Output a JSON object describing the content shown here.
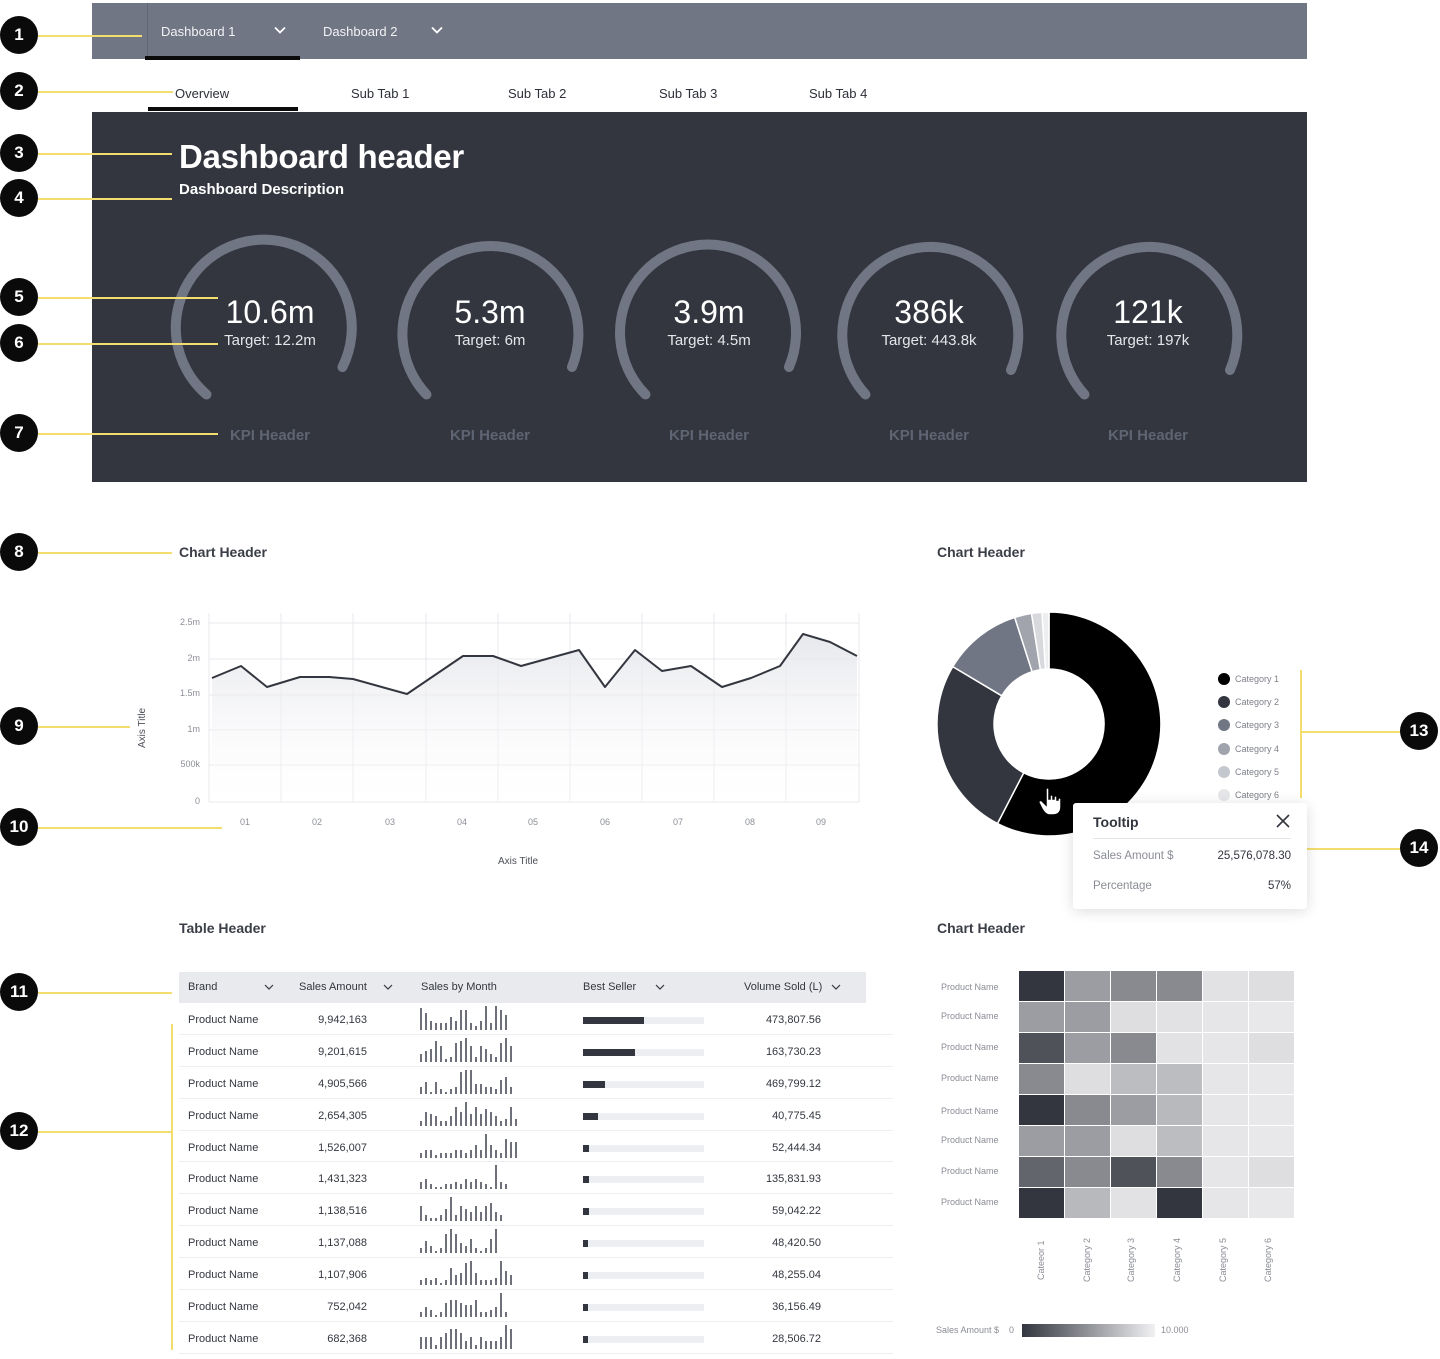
{
  "annotations": [
    "1",
    "2",
    "3",
    "4",
    "5",
    "6",
    "7",
    "8",
    "9",
    "10",
    "11",
    "12",
    "13",
    "14"
  ],
  "top_tabs": [
    {
      "label": "Dashboard 1",
      "active": true
    },
    {
      "label": "Dashboard 2",
      "active": false
    }
  ],
  "sub_tabs": [
    {
      "label": "Overview",
      "active": true
    },
    {
      "label": "Sub Tab 1"
    },
    {
      "label": "Sub Tab 2"
    },
    {
      "label": "Sub Tab 3"
    },
    {
      "label": "Sub Tab 4"
    }
  ],
  "hero": {
    "title": "Dashboard header",
    "description": "Dashboard Description",
    "kpis": [
      {
        "value": "10.6m",
        "target": "Target: 12.2m",
        "title": "KPI Header"
      },
      {
        "value": "5.3m",
        "target": "Target: 6m",
        "title": "KPI Header"
      },
      {
        "value": "3.9m",
        "target": "Target: 4.5m",
        "title": "KPI Header"
      },
      {
        "value": "386k",
        "target": "Target: 443.8k",
        "title": "KPI Header"
      },
      {
        "value": "121k",
        "target": "Target: 197k",
        "title": "KPI Header"
      }
    ]
  },
  "line_chart": {
    "header": "Chart Header",
    "y_axis_title": "Axis Title",
    "x_axis_title": "Axis Title",
    "y_ticks": [
      "2.5m",
      "2m",
      "1.5m",
      "1m",
      "500k",
      "0"
    ],
    "x_ticks": [
      "01",
      "02",
      "03",
      "04",
      "05",
      "06",
      "07",
      "08",
      "09"
    ]
  },
  "donut_chart": {
    "header": "Chart Header",
    "legend": [
      {
        "label": "Category 1",
        "color": "#000000"
      },
      {
        "label": "Category 2",
        "color": "#33363f"
      },
      {
        "label": "Category 3",
        "color": "#717684"
      },
      {
        "label": "Category 4",
        "color": "#a1a4ac"
      },
      {
        "label": "Category 5",
        "color": "#c4c7cd"
      },
      {
        "label": "Category 6",
        "color": "#e6e7ea"
      }
    ],
    "tooltip": {
      "title": "Tooltip",
      "rows": [
        {
          "key": "Sales Amount $",
          "value": "25,576,078.30"
        },
        {
          "key": "Percentage",
          "value": "57%"
        }
      ]
    }
  },
  "table": {
    "header": "Table Header",
    "columns": [
      "Brand",
      "Sales Amount",
      "Sales by Month",
      "Best Seller",
      "Volume Sold (L)"
    ],
    "rows": [
      {
        "brand": "Product Name",
        "sales": "9,942,163",
        "best": 0.5,
        "volume": "473,807.56",
        "spark": [
          10,
          8,
          4,
          3,
          3,
          3,
          6,
          4,
          9,
          9,
          3,
          2,
          4,
          11,
          3,
          11,
          9,
          7
        ]
      },
      {
        "brand": "Product Name",
        "sales": "9,201,615",
        "best": 0.43,
        "volume": "163,730.23",
        "spark": [
          3,
          4,
          5,
          8,
          6,
          1,
          2,
          7,
          8,
          9,
          6,
          2,
          6,
          5,
          3,
          2,
          7,
          9,
          6
        ]
      },
      {
        "brand": "Product Name",
        "sales": "4,905,566",
        "best": 0.18,
        "volume": "469,799.12",
        "spark": [
          3,
          5,
          1,
          5,
          2,
          1,
          2,
          3,
          9,
          10,
          10,
          4,
          4,
          3,
          3,
          2,
          6,
          7,
          3
        ]
      },
      {
        "brand": "Product Name",
        "sales": "2,654,305",
        "best": 0.12,
        "volume": "40,775.45",
        "spark": [
          2,
          6,
          5,
          4,
          2,
          2,
          4,
          8,
          6,
          10,
          5,
          8,
          5,
          7,
          6,
          4,
          2,
          3,
          8,
          3
        ]
      },
      {
        "brand": "Product Name",
        "sales": "1,526,007",
        "best": 0.05,
        "volume": "52,444.34",
        "spark": [
          2,
          3,
          3,
          1,
          2,
          2,
          2,
          3,
          3,
          2,
          3,
          5,
          3,
          9,
          5,
          3,
          2,
          7,
          6,
          6
        ]
      },
      {
        "brand": "Product Name",
        "sales": "1,431,323",
        "best": 0.05,
        "volume": "135,831.93",
        "spark": [
          3,
          4,
          2,
          1,
          1,
          2,
          2,
          3,
          2,
          4,
          3,
          4,
          3,
          2,
          1,
          10,
          3,
          2
        ]
      },
      {
        "brand": "Product Name",
        "sales": "1,138,516",
        "best": 0.05,
        "volume": "59,042.22",
        "spark": [
          5,
          2,
          1,
          1,
          2,
          4,
          8,
          2,
          5,
          4,
          3,
          5,
          3,
          5,
          6,
          3,
          2
        ]
      },
      {
        "brand": "Product Name",
        "sales": "1,137,088",
        "best": 0.04,
        "volume": "48,420.50",
        "spark": [
          2,
          5,
          3,
          1,
          2,
          8,
          10,
          8,
          4,
          3,
          6,
          2,
          1,
          2,
          6,
          10
        ]
      },
      {
        "brand": "Product Name",
        "sales": "1,107,906",
        "best": 0.04,
        "volume": "48,255.04",
        "spark": [
          2,
          3,
          2,
          3,
          1,
          2,
          7,
          4,
          5,
          9,
          10,
          5,
          2,
          2,
          2,
          3,
          10,
          6,
          4
        ]
      },
      {
        "brand": "Product Name",
        "sales": "752,042",
        "best": 0.04,
        "volume": "36,156.49",
        "spark": [
          2,
          4,
          3,
          1,
          2,
          6,
          7,
          7,
          6,
          5,
          5,
          7,
          2,
          2,
          3,
          4,
          10,
          2
        ]
      },
      {
        "brand": "Product Name",
        "sales": "682,368",
        "best": 0.04,
        "volume": "28,506.72",
        "spark": [
          3,
          3,
          3,
          1,
          3,
          4,
          5,
          5,
          4,
          2,
          3,
          1,
          3,
          2,
          2,
          2,
          3,
          6,
          5
        ]
      }
    ]
  },
  "heatmap": {
    "header": "Chart Header",
    "row_labels": [
      "Product Name",
      "Product Name",
      "Product Name",
      "Product Name",
      "Product Name",
      "Product Name",
      "Product Name",
      "Product Name"
    ],
    "col_labels": [
      "Cateeor 1",
      "Category 2",
      "Category 3",
      "Category 4",
      "Category 5",
      "Category 6"
    ],
    "scale_label": "Sales Amount $",
    "scale_min": "0",
    "scale_max": "10.000"
  },
  "chart_data": [
    {
      "type": "area",
      "title": "Chart Header",
      "xlabel": "Axis Title",
      "ylabel": "Axis Title",
      "x_ticks": [
        "01",
        "02",
        "03",
        "04",
        "05",
        "06",
        "07",
        "08",
        "09"
      ],
      "ylim": [
        0,
        2500000
      ],
      "grid": true,
      "x": [
        0.0,
        0.45,
        0.85,
        1.5,
        2.0,
        2.5,
        3.3,
        3.85,
        4.85,
        5.2,
        5.85,
        6.1,
        6.55,
        6.65,
        7.15,
        7.45,
        8.05,
        8.5,
        8.85,
        9.0,
        9.4
      ],
      "values": [
        1730000,
        1900000,
        1600000,
        1750000,
        1750000,
        1730000,
        1510000,
        2050000,
        2050000,
        1900000,
        2140000,
        1600000,
        2140000,
        1830000,
        1900000,
        1600000,
        1730000,
        1900000,
        2350000,
        2230000,
        2050000
      ]
    },
    {
      "type": "pie",
      "title": "Chart Header",
      "categories": [
        "Category 1",
        "Category 2",
        "Category 3",
        "Category 4",
        "Category 5",
        "Category 6"
      ],
      "values": [
        57,
        28,
        10,
        2.5,
        1.5,
        1
      ],
      "legend_position": "right"
    },
    {
      "type": "heatmap",
      "title": "Chart Header",
      "rows": [
        "Product Name",
        "Product Name",
        "Product Name",
        "Product Name",
        "Product Name",
        "Product Name",
        "Product Name",
        "Product Name"
      ],
      "columns": [
        "Category 1",
        "Category 2",
        "Category 3",
        "Category 4",
        "Category 5",
        "Category 6"
      ],
      "values": [
        [
          10000,
          4500,
          5500,
          5500,
          800,
          1000
        ],
        [
          4500,
          4500,
          1000,
          800,
          600,
          500
        ],
        [
          8500,
          4500,
          5500,
          800,
          600,
          1000
        ],
        [
          5500,
          1000,
          2800,
          2800,
          600,
          500
        ],
        [
          10000,
          5500,
          4500,
          3000,
          600,
          500
        ],
        [
          4500,
          4500,
          1000,
          2800,
          600,
          500
        ],
        [
          7500,
          5500,
          8500,
          5500,
          600,
          1000
        ],
        [
          10000,
          3000,
          800,
          10000,
          600,
          500
        ]
      ],
      "scale": [
        0,
        10000
      ]
    }
  ]
}
